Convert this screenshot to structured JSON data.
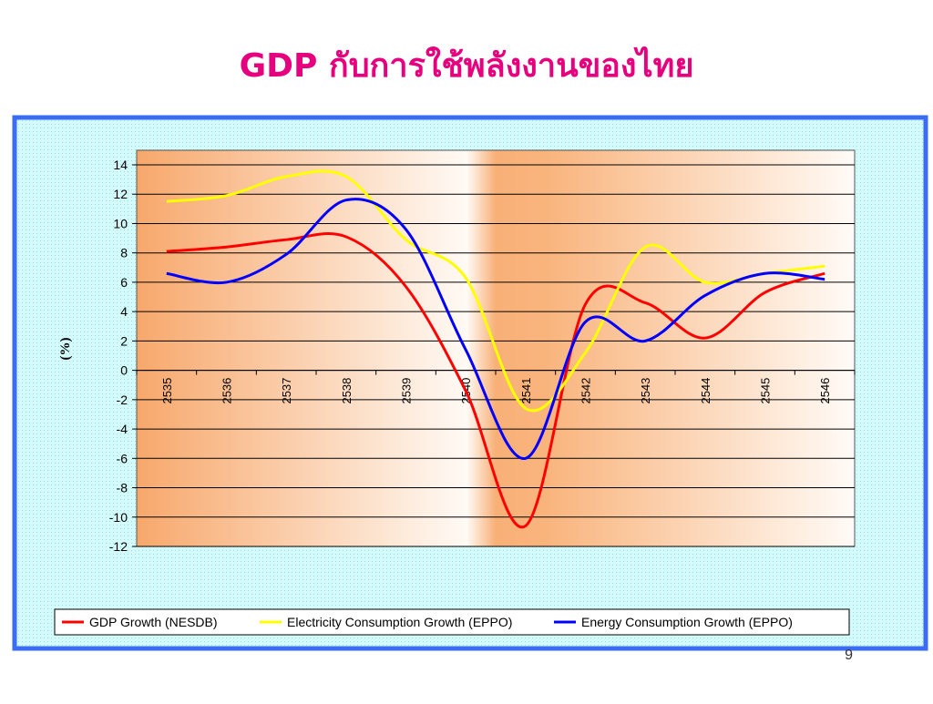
{
  "chart_data": {
    "type": "line",
    "title": "GDP กับการใช้พลังงานของไทย",
    "y_label": "(%)",
    "page_number": "9",
    "categories": [
      "2535",
      "2536",
      "2537",
      "2538",
      "2539",
      "2540",
      "2541",
      "2542",
      "2543",
      "2544",
      "2545",
      "2546"
    ],
    "series": [
      {
        "name": "GDP Growth (NESDB)",
        "color": "#ff0000",
        "values": [
          8.1,
          8.4,
          8.9,
          9.1,
          5.7,
          -1.4,
          -10.6,
          4.5,
          4.6,
          2.2,
          5.3,
          6.6
        ]
      },
      {
        "name": "Electricity Consumption Growth (EPPO)",
        "color": "#ffff00",
        "values": [
          11.5,
          11.9,
          13.2,
          13.2,
          8.9,
          6.3,
          -2.6,
          1.2,
          8.4,
          6.0,
          6.6,
          7.1
        ]
      },
      {
        "name": "Energy Consumption Growth (EPPO)",
        "color": "#0000ff",
        "values": [
          6.6,
          6.0,
          7.9,
          11.6,
          9.6,
          1.4,
          -6.0,
          3.3,
          2.0,
          5.1,
          6.6,
          6.2
        ]
      }
    ],
    "ylim": [
      -12,
      14
    ],
    "yticks": [
      -12,
      -10,
      -8,
      -6,
      -4,
      -2,
      0,
      2,
      4,
      6,
      8,
      10,
      12,
      14
    ],
    "grid": true,
    "smooth": true,
    "legend": "bottom"
  }
}
